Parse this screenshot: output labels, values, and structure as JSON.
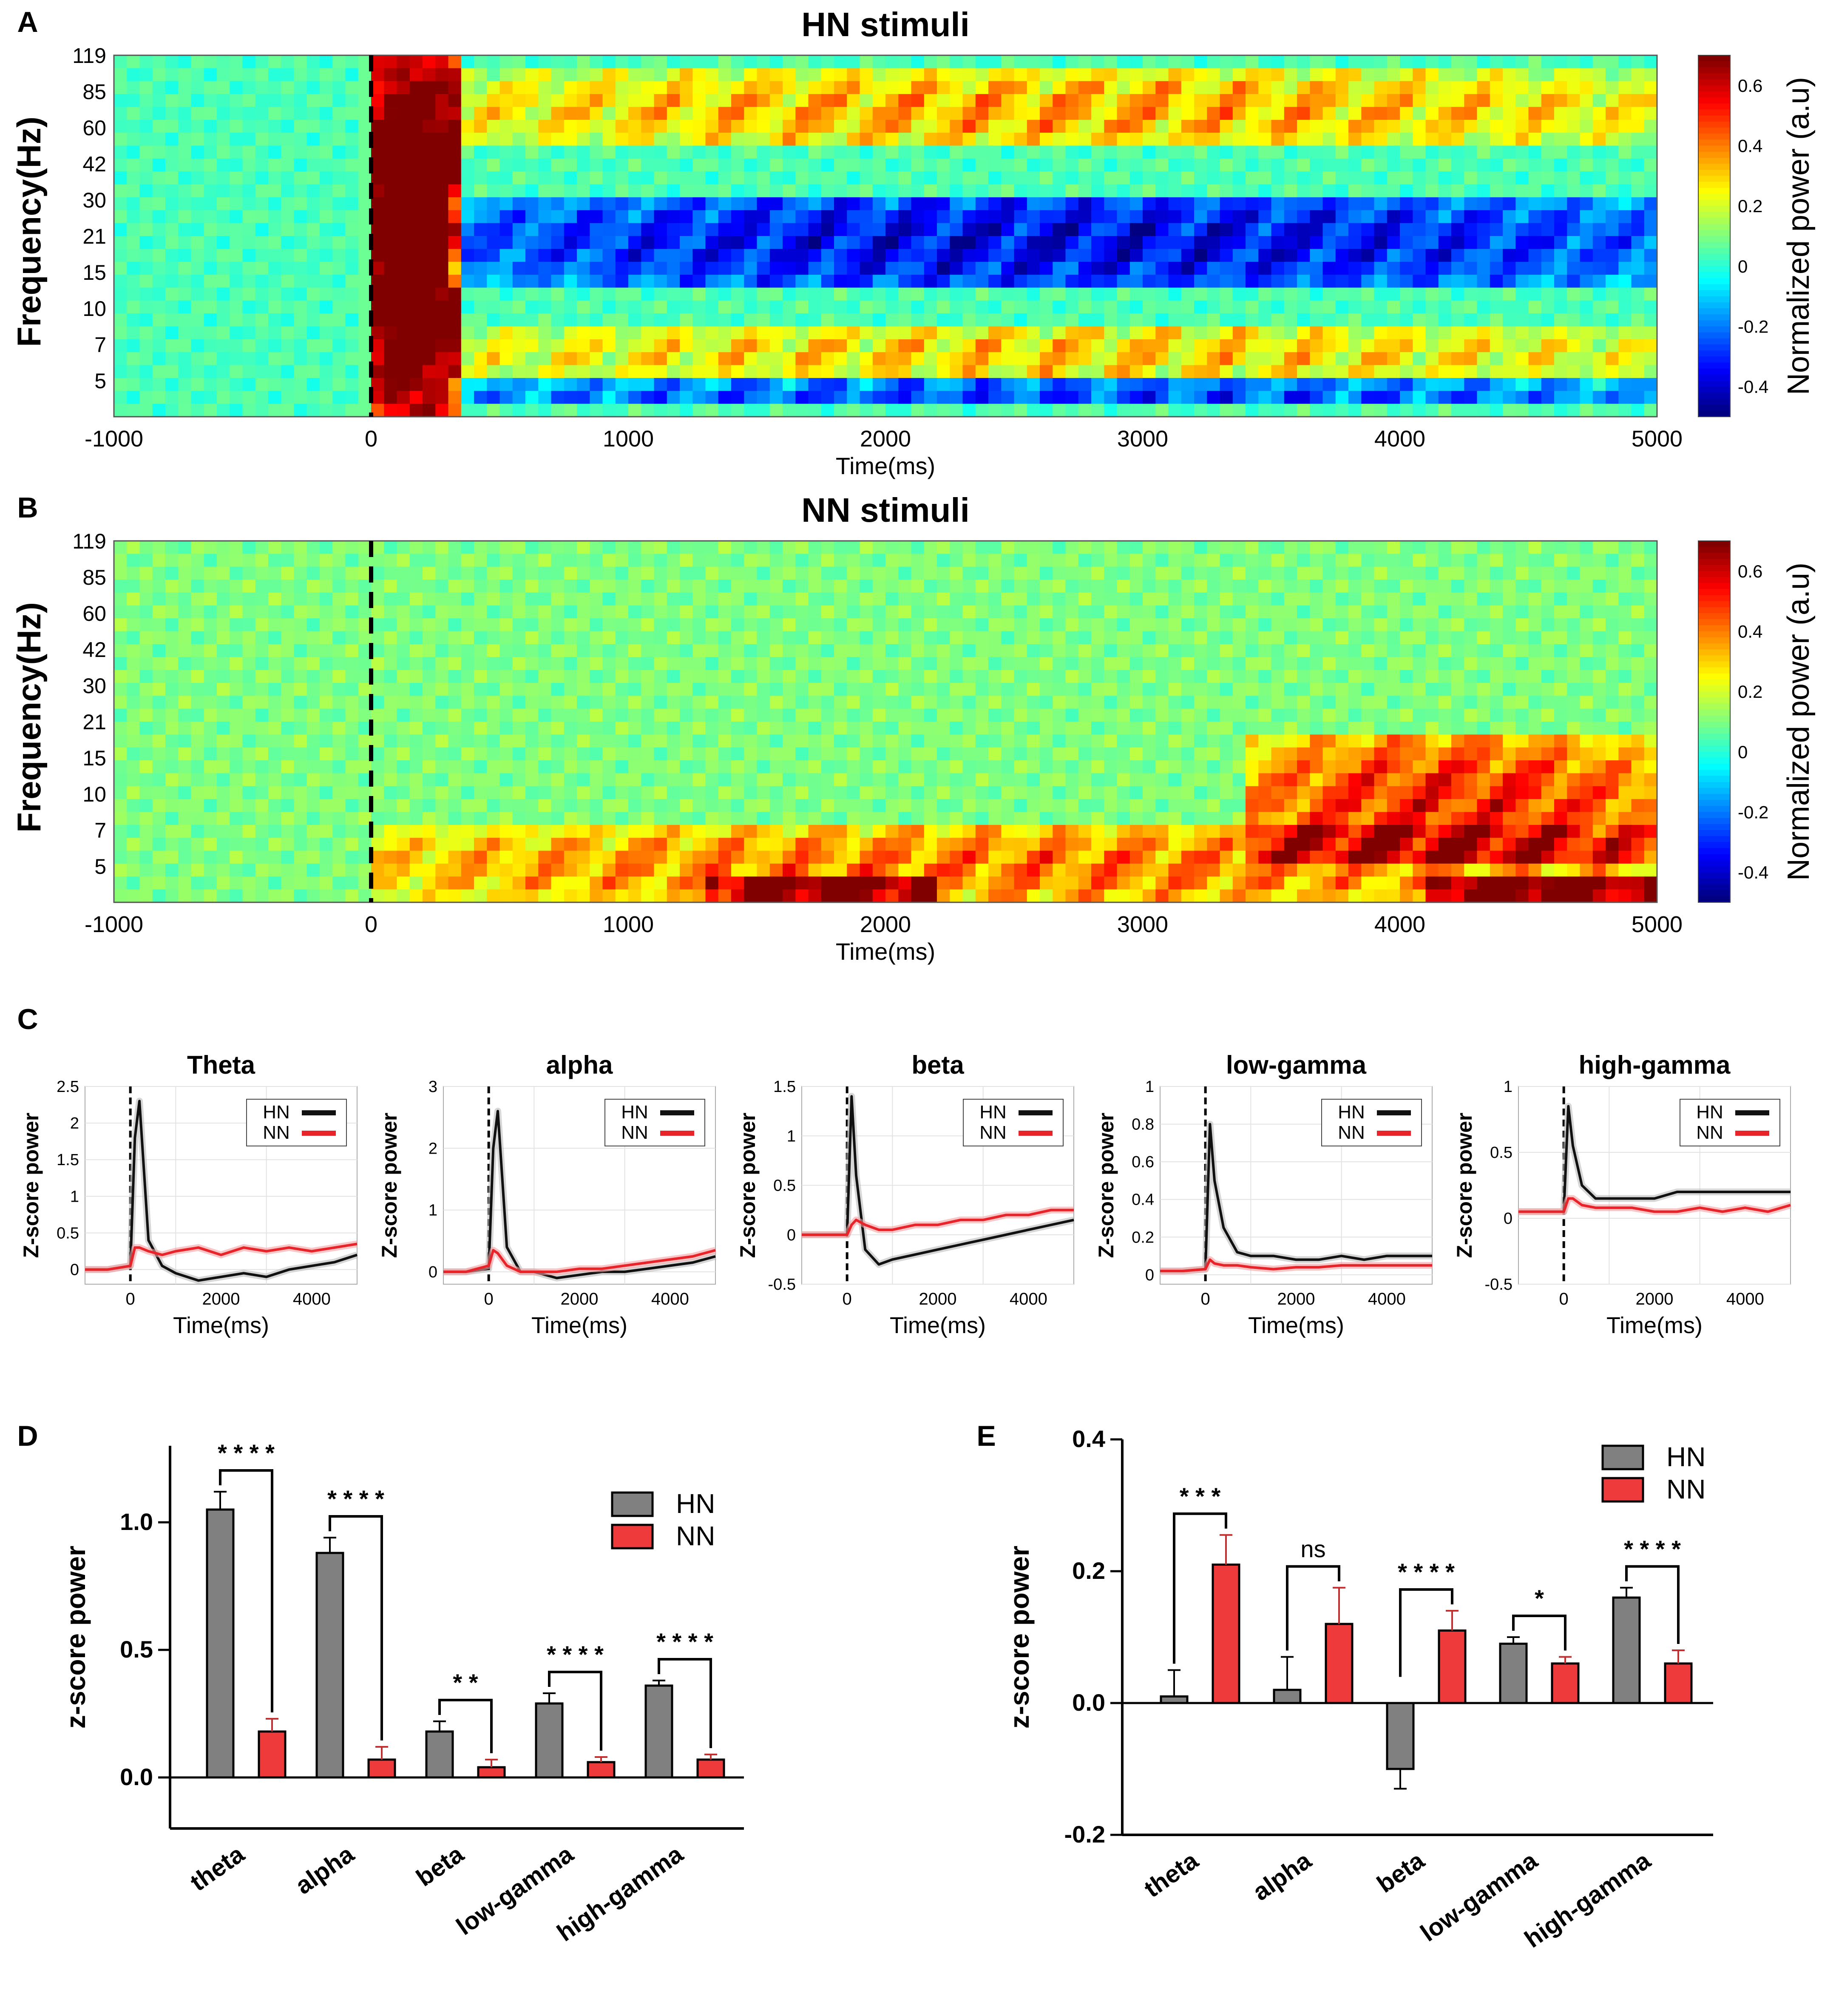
{
  "colors": {
    "hn": "#808080",
    "nn": "#ee3a3a",
    "hn_line": "#111111",
    "nn_line": "#e8242b",
    "dashed": "#000000"
  },
  "panels": {
    "A": {
      "letter": "A",
      "title": "HN stimuli",
      "xlabel": "Time(ms)",
      "ylabel": "Frequency(Hz)",
      "colorbar_label": "Normalized power (a.u)",
      "x_ticks": [
        "-1000",
        "0",
        "1000",
        "2000",
        "3000",
        "4000",
        "5000"
      ],
      "y_ticks": [
        "119",
        "85",
        "60",
        "42",
        "30",
        "21",
        "15",
        "10",
        "7",
        "5"
      ],
      "cb_ticks": [
        "0.6",
        "0.4",
        "0.2",
        "0",
        "-0.2",
        "-0.4"
      ]
    },
    "B": {
      "letter": "B",
      "title": "NN stimuli",
      "xlabel": "Time(ms)",
      "ylabel": "Frequency(Hz)",
      "colorbar_label": "Normalized power (a.u)",
      "x_ticks": [
        "-1000",
        "0",
        "1000",
        "2000",
        "3000",
        "4000",
        "5000"
      ],
      "y_ticks": [
        "119",
        "85",
        "60",
        "42",
        "30",
        "21",
        "15",
        "10",
        "7",
        "5"
      ],
      "cb_ticks": [
        "0.6",
        "0.4",
        "0.2",
        "0",
        "-0.2",
        "-0.4"
      ]
    },
    "C": {
      "letter": "C",
      "ylabel": "Z-score power",
      "xlabel": "Time(ms)",
      "legend": [
        "HN",
        "NN"
      ],
      "x_ticks": [
        "0",
        "2000",
        "4000"
      ]
    },
    "D": {
      "letter": "D"
    },
    "E": {
      "letter": "E"
    }
  },
  "chart_data": [
    {
      "id": "A",
      "type": "heatmap",
      "title": "HN stimuli",
      "xlabel": "Time(ms)",
      "ylabel": "Frequency(Hz)",
      "xlim": [
        -1000,
        5000
      ],
      "yticks": [
        "119",
        "85",
        "60",
        "42",
        "30",
        "21",
        "15",
        "10",
        "7",
        "5"
      ],
      "colorbar": {
        "label": "Normalized power (a.u)",
        "range": [
          -0.5,
          0.7
        ]
      },
      "blobs": [
        {
          "t0": -30,
          "t1": 350,
          "f0": 0.0,
          "f1": 1.0,
          "v": 0.9
        },
        {
          "t0": 300,
          "t1": 5000,
          "f0": 0.35,
          "f1": 0.62,
          "v": -0.4
        },
        {
          "t0": 300,
          "t1": 5000,
          "f0": 0.02,
          "f1": 0.1,
          "v": -0.3
        },
        {
          "t0": 300,
          "t1": 5000,
          "f0": 0.1,
          "f1": 0.25,
          "v": 0.25
        },
        {
          "t0": 300,
          "t1": 5000,
          "f0": 0.75,
          "f1": 0.95,
          "v": 0.3
        }
      ]
    },
    {
      "id": "B",
      "type": "heatmap",
      "title": "NN stimuli",
      "xlabel": "Time(ms)",
      "ylabel": "Frequency(Hz)",
      "xlim": [
        -1000,
        5000
      ],
      "yticks": [
        "119",
        "85",
        "60",
        "42",
        "30",
        "21",
        "15",
        "10",
        "7",
        "5"
      ],
      "colorbar": {
        "label": "Normalized power (a.u)",
        "range": [
          -0.5,
          0.7
        ]
      },
      "blobs": [
        {
          "t0": 0,
          "t1": 5000,
          "f0": 0.0,
          "f1": 0.2,
          "v": 0.3
        },
        {
          "t0": 3400,
          "t1": 5000,
          "f0": 0.1,
          "f1": 0.45,
          "v": 0.4
        },
        {
          "t0": 1300,
          "t1": 2200,
          "f0": 0.0,
          "f1": 0.08,
          "v": 0.45
        },
        {
          "t0": 4100,
          "t1": 5000,
          "f0": 0.0,
          "f1": 0.08,
          "v": 0.55
        }
      ]
    },
    {
      "id": "C",
      "type": "line",
      "panels": [
        {
          "title": "Theta",
          "ylim": [
            -0.2,
            2.5
          ],
          "yticks": [
            "0",
            "0.5",
            "1",
            "1.5",
            "2",
            "2.5"
          ],
          "ytick_values": [
            0,
            0.5,
            1,
            1.5,
            2,
            2.5
          ],
          "x": [
            -1000,
            -500,
            0,
            100,
            200,
            400,
            700,
            1000,
            1500,
            2000,
            2500,
            3000,
            3500,
            4000,
            4500,
            5000
          ],
          "series": [
            {
              "name": "HN",
              "values": [
                0,
                0,
                0.05,
                1.8,
                2.3,
                0.4,
                0.05,
                -0.05,
                -0.15,
                -0.1,
                -0.05,
                -0.1,
                0,
                0.05,
                0.1,
                0.2
              ]
            },
            {
              "name": "NN",
              "values": [
                0,
                0,
                0.05,
                0.3,
                0.3,
                0.25,
                0.2,
                0.25,
                0.3,
                0.2,
                0.3,
                0.25,
                0.3,
                0.25,
                0.3,
                0.35
              ]
            }
          ]
        },
        {
          "title": "alpha",
          "ylim": [
            -0.2,
            3
          ],
          "yticks": [
            "0",
            "1",
            "2",
            "3"
          ],
          "ytick_values": [
            0,
            1,
            2,
            3
          ],
          "x": [
            -1000,
            -500,
            0,
            100,
            200,
            400,
            700,
            1000,
            1500,
            2000,
            2500,
            3000,
            3500,
            4000,
            4500,
            5000
          ],
          "series": [
            {
              "name": "HN",
              "values": [
                0,
                0,
                0.05,
                2.0,
                2.6,
                0.4,
                0,
                0,
                -0.1,
                -0.05,
                0,
                0,
                0.05,
                0.1,
                0.15,
                0.25
              ]
            },
            {
              "name": "NN",
              "values": [
                0,
                0,
                0.1,
                0.35,
                0.3,
                0.1,
                0,
                0,
                0,
                0.05,
                0.05,
                0.1,
                0.15,
                0.2,
                0.25,
                0.35
              ]
            }
          ]
        },
        {
          "title": "beta",
          "ylim": [
            -0.5,
            1.5
          ],
          "yticks": [
            "-0.5",
            "0",
            "0.5",
            "1",
            "1.5"
          ],
          "ytick_values": [
            -0.5,
            0,
            0.5,
            1,
            1.5
          ],
          "x": [
            -1000,
            -500,
            0,
            100,
            200,
            400,
            700,
            1000,
            1500,
            2000,
            2500,
            3000,
            3500,
            4000,
            4500,
            5000
          ],
          "series": [
            {
              "name": "HN",
              "values": [
                0,
                0,
                0,
                1.4,
                0.6,
                -0.15,
                -0.3,
                -0.25,
                -0.2,
                -0.15,
                -0.1,
                -0.05,
                0,
                0.05,
                0.1,
                0.15
              ]
            },
            {
              "name": "NN",
              "values": [
                0,
                0,
                0,
                0.1,
                0.15,
                0.1,
                0.05,
                0.05,
                0.1,
                0.1,
                0.15,
                0.15,
                0.2,
                0.2,
                0.25,
                0.25
              ]
            }
          ]
        },
        {
          "title": "low-gamma",
          "ylim": [
            -0.05,
            1
          ],
          "yticks": [
            "0",
            "0.2",
            "0.4",
            "0.6",
            "0.8",
            "1"
          ],
          "ytick_values": [
            0,
            0.2,
            0.4,
            0.6,
            0.8,
            1
          ],
          "x": [
            -1000,
            -500,
            0,
            100,
            200,
            400,
            700,
            1000,
            1500,
            2000,
            2500,
            3000,
            3500,
            4000,
            4500,
            5000
          ],
          "series": [
            {
              "name": "HN",
              "values": [
                0.02,
                0.02,
                0.03,
                0.8,
                0.5,
                0.25,
                0.12,
                0.1,
                0.1,
                0.08,
                0.08,
                0.1,
                0.08,
                0.1,
                0.1,
                0.1
              ]
            },
            {
              "name": "NN",
              "values": [
                0.02,
                0.02,
                0.03,
                0.08,
                0.06,
                0.05,
                0.05,
                0.04,
                0.03,
                0.04,
                0.04,
                0.05,
                0.05,
                0.05,
                0.05,
                0.05
              ]
            }
          ]
        },
        {
          "title": "high-gamma",
          "ylim": [
            -0.5,
            1
          ],
          "yticks": [
            "-0.5",
            "0",
            "0.5",
            "1"
          ],
          "ytick_values": [
            -0.5,
            0,
            0.5,
            1
          ],
          "x": [
            -1000,
            -500,
            0,
            100,
            200,
            400,
            700,
            1000,
            1500,
            2000,
            2500,
            3000,
            3500,
            4000,
            4500,
            5000
          ],
          "series": [
            {
              "name": "HN",
              "values": [
                0.05,
                0.05,
                0.05,
                0.85,
                0.55,
                0.25,
                0.15,
                0.15,
                0.15,
                0.15,
                0.2,
                0.2,
                0.2,
                0.2,
                0.2,
                0.2
              ]
            },
            {
              "name": "NN",
              "values": [
                0.05,
                0.05,
                0.05,
                0.15,
                0.15,
                0.1,
                0.08,
                0.08,
                0.08,
                0.05,
                0.05,
                0.08,
                0.05,
                0.08,
                0.05,
                0.1
              ]
            }
          ]
        }
      ]
    },
    {
      "id": "D",
      "type": "bar",
      "ylabel": "z-score power",
      "ylim": [
        -0.2,
        1.3
      ],
      "yticks": [
        "0.0",
        "0.5",
        "1.0"
      ],
      "ytick_values": [
        0,
        0.5,
        1.0
      ],
      "categories": [
        "theta",
        "alpha",
        "beta",
        "low-gamma",
        "high-gamma"
      ],
      "series": [
        {
          "name": "HN",
          "values": [
            1.05,
            0.88,
            0.18,
            0.29,
            0.36
          ],
          "errors": [
            0.07,
            0.06,
            0.04,
            0.04,
            0.02
          ]
        },
        {
          "name": "NN",
          "values": [
            0.18,
            0.07,
            0.04,
            0.06,
            0.07
          ],
          "errors": [
            0.05,
            0.05,
            0.03,
            0.02,
            0.02
          ]
        }
      ],
      "significance": [
        "* * * *",
        "* * * *",
        "* *",
        "* * * *",
        "* * * *"
      ]
    },
    {
      "id": "E",
      "type": "bar",
      "ylabel": "z-score power",
      "ylim": [
        -0.2,
        0.4
      ],
      "yticks": [
        "-0.2",
        "0.0",
        "0.2",
        "0.4"
      ],
      "ytick_values": [
        -0.2,
        0,
        0.2,
        0.4
      ],
      "categories": [
        "theta",
        "alpha",
        "beta",
        "low-gamma",
        "high-gamma"
      ],
      "series": [
        {
          "name": "HN",
          "values": [
            0.01,
            0.02,
            -0.1,
            0.09,
            0.16
          ],
          "errors": [
            0.04,
            0.05,
            0.03,
            0.01,
            0.015
          ]
        },
        {
          "name": "NN",
          "values": [
            0.21,
            0.12,
            0.11,
            0.06,
            0.06
          ],
          "errors": [
            0.045,
            0.055,
            0.03,
            0.01,
            0.02
          ]
        }
      ],
      "significance": [
        "* * *",
        "ns",
        "* * * *",
        "*",
        "* * * *"
      ]
    }
  ]
}
